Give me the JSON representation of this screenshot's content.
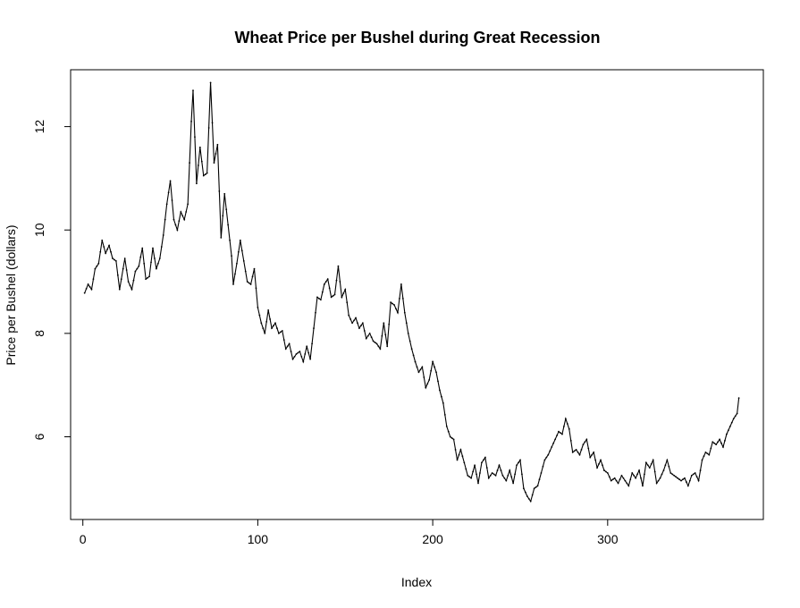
{
  "chart_data": {
    "type": "line",
    "title": "Wheat Price per Bushel during Great Recession",
    "xlabel": "Index",
    "ylabel": "Price per Bushel (dollars)",
    "xlim": [
      -7,
      389
    ],
    "ylim": [
      4.4,
      13.1
    ],
    "x_ticks": [
      0,
      100,
      200,
      300
    ],
    "y_ticks": [
      6,
      8,
      10,
      12
    ],
    "grid": false,
    "legend": "none",
    "line_color": "#000000",
    "series": [
      {
        "anchors": [
          [
            1,
            8.78
          ],
          [
            3,
            8.95
          ],
          [
            5,
            8.85
          ],
          [
            7,
            9.25
          ],
          [
            9,
            9.35
          ],
          [
            11,
            9.8
          ],
          [
            13,
            9.55
          ],
          [
            15,
            9.7
          ],
          [
            17,
            9.45
          ],
          [
            19,
            9.4
          ],
          [
            21,
            8.85
          ],
          [
            24,
            9.45
          ],
          [
            26,
            9.0
          ],
          [
            28,
            8.85
          ],
          [
            30,
            9.2
          ],
          [
            32,
            9.3
          ],
          [
            34,
            9.65
          ],
          [
            36,
            9.05
          ],
          [
            38,
            9.1
          ],
          [
            40,
            9.65
          ],
          [
            42,
            9.25
          ],
          [
            44,
            9.45
          ],
          [
            46,
            9.9
          ],
          [
            48,
            10.5
          ],
          [
            50,
            10.95
          ],
          [
            52,
            10.2
          ],
          [
            54,
            10.0
          ],
          [
            56,
            10.35
          ],
          [
            58,
            10.2
          ],
          [
            60,
            10.5
          ],
          [
            62,
            12.1
          ],
          [
            63,
            12.7
          ],
          [
            65,
            10.9
          ],
          [
            67,
            11.6
          ],
          [
            69,
            11.05
          ],
          [
            71,
            11.1
          ],
          [
            73,
            12.85
          ],
          [
            75,
            11.3
          ],
          [
            77,
            11.65
          ],
          [
            79,
            9.85
          ],
          [
            81,
            10.7
          ],
          [
            83,
            10.1
          ],
          [
            85,
            9.5
          ],
          [
            86,
            8.95
          ],
          [
            88,
            9.35
          ],
          [
            90,
            9.8
          ],
          [
            92,
            9.4
          ],
          [
            94,
            9.0
          ],
          [
            96,
            8.95
          ],
          [
            98,
            9.25
          ],
          [
            100,
            8.5
          ],
          [
            102,
            8.2
          ],
          [
            104,
            8.0
          ],
          [
            106,
            8.45
          ],
          [
            108,
            8.1
          ],
          [
            110,
            8.2
          ],
          [
            112,
            8.0
          ],
          [
            114,
            8.05
          ],
          [
            116,
            7.7
          ],
          [
            118,
            7.8
          ],
          [
            120,
            7.5
          ],
          [
            122,
            7.6
          ],
          [
            124,
            7.65
          ],
          [
            126,
            7.45
          ],
          [
            128,
            7.75
          ],
          [
            130,
            7.5
          ],
          [
            132,
            8.1
          ],
          [
            134,
            8.7
          ],
          [
            136,
            8.65
          ],
          [
            138,
            8.95
          ],
          [
            140,
            9.05
          ],
          [
            142,
            8.7
          ],
          [
            144,
            8.75
          ],
          [
            146,
            9.3
          ],
          [
            148,
            8.7
          ],
          [
            150,
            8.85
          ],
          [
            152,
            8.35
          ],
          [
            154,
            8.2
          ],
          [
            156,
            8.3
          ],
          [
            158,
            8.1
          ],
          [
            160,
            8.2
          ],
          [
            162,
            7.9
          ],
          [
            164,
            8.0
          ],
          [
            166,
            7.85
          ],
          [
            168,
            7.8
          ],
          [
            170,
            7.7
          ],
          [
            172,
            8.2
          ],
          [
            174,
            7.75
          ],
          [
            176,
            8.6
          ],
          [
            178,
            8.55
          ],
          [
            180,
            8.4
          ],
          [
            182,
            8.95
          ],
          [
            184,
            8.4
          ],
          [
            186,
            8.0
          ],
          [
            188,
            7.7
          ],
          [
            190,
            7.45
          ],
          [
            192,
            7.25
          ],
          [
            194,
            7.35
          ],
          [
            196,
            6.95
          ],
          [
            198,
            7.1
          ],
          [
            200,
            7.45
          ],
          [
            202,
            7.25
          ],
          [
            204,
            6.9
          ],
          [
            206,
            6.65
          ],
          [
            208,
            6.2
          ],
          [
            210,
            6.0
          ],
          [
            212,
            5.95
          ],
          [
            214,
            5.55
          ],
          [
            216,
            5.75
          ],
          [
            218,
            5.5
          ],
          [
            220,
            5.25
          ],
          [
            222,
            5.2
          ],
          [
            224,
            5.45
          ],
          [
            226,
            5.1
          ],
          [
            228,
            5.5
          ],
          [
            230,
            5.6
          ],
          [
            232,
            5.2
          ],
          [
            234,
            5.3
          ],
          [
            236,
            5.25
          ],
          [
            238,
            5.45
          ],
          [
            240,
            5.25
          ],
          [
            242,
            5.15
          ],
          [
            244,
            5.35
          ],
          [
            246,
            5.1
          ],
          [
            248,
            5.45
          ],
          [
            250,
            5.55
          ],
          [
            252,
            5.0
          ],
          [
            254,
            4.85
          ],
          [
            256,
            4.75
          ],
          [
            258,
            5.0
          ],
          [
            260,
            5.05
          ],
          [
            262,
            5.3
          ],
          [
            264,
            5.55
          ],
          [
            266,
            5.65
          ],
          [
            268,
            5.8
          ],
          [
            270,
            5.95
          ],
          [
            272,
            6.1
          ],
          [
            274,
            6.05
          ],
          [
            276,
            6.35
          ],
          [
            278,
            6.15
          ],
          [
            280,
            5.7
          ],
          [
            282,
            5.75
          ],
          [
            284,
            5.65
          ],
          [
            286,
            5.85
          ],
          [
            288,
            5.95
          ],
          [
            290,
            5.6
          ],
          [
            292,
            5.7
          ],
          [
            294,
            5.4
          ],
          [
            296,
            5.55
          ],
          [
            298,
            5.35
          ],
          [
            300,
            5.3
          ],
          [
            302,
            5.15
          ],
          [
            304,
            5.2
          ],
          [
            306,
            5.1
          ],
          [
            308,
            5.25
          ],
          [
            310,
            5.15
          ],
          [
            312,
            5.05
          ],
          [
            314,
            5.3
          ],
          [
            316,
            5.2
          ],
          [
            318,
            5.35
          ],
          [
            320,
            5.05
          ],
          [
            322,
            5.5
          ],
          [
            324,
            5.4
          ],
          [
            326,
            5.55
          ],
          [
            328,
            5.1
          ],
          [
            330,
            5.2
          ],
          [
            332,
            5.35
          ],
          [
            334,
            5.55
          ],
          [
            336,
            5.3
          ],
          [
            338,
            5.25
          ],
          [
            340,
            5.2
          ],
          [
            342,
            5.15
          ],
          [
            344,
            5.2
          ],
          [
            346,
            5.05
          ],
          [
            348,
            5.25
          ],
          [
            350,
            5.3
          ],
          [
            352,
            5.15
          ],
          [
            354,
            5.55
          ],
          [
            356,
            5.7
          ],
          [
            358,
            5.65
          ],
          [
            360,
            5.9
          ],
          [
            362,
            5.85
          ],
          [
            364,
            5.95
          ],
          [
            366,
            5.8
          ],
          [
            368,
            6.05
          ],
          [
            370,
            6.2
          ],
          [
            372,
            6.35
          ],
          [
            374,
            6.45
          ],
          [
            375,
            6.75
          ]
        ]
      }
    ]
  }
}
